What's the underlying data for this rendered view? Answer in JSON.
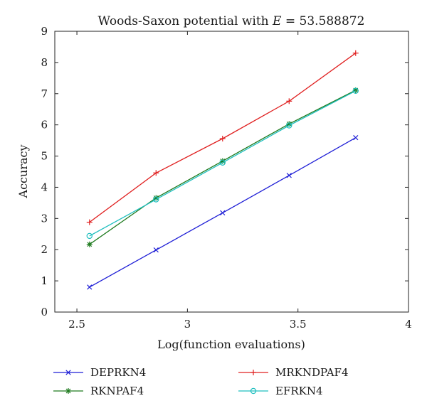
{
  "chart_data": {
    "type": "line",
    "title_prefix": "Woods-Saxon potential with ",
    "title_var": "E",
    "title_suffix": " = 53.588872",
    "xlabel": "Log(function evaluations)",
    "ylabel": "Accuracy",
    "xlim": [
      2.4,
      4
    ],
    "ylim": [
      0,
      9
    ],
    "xticks": [
      2.5,
      3,
      3.5,
      4
    ],
    "xtick_labels": [
      "2.5",
      "3",
      "3.5",
      "4"
    ],
    "yticks": [
      0,
      1,
      2,
      3,
      4,
      5,
      6,
      7,
      8,
      9
    ],
    "ytick_labels": [
      "0",
      "1",
      "2",
      "3",
      "4",
      "5",
      "6",
      "7",
      "8",
      "9"
    ],
    "grid": false,
    "legend_position": "bottom",
    "series": [
      {
        "name": "DEPRKN4",
        "color": "#1f1fd6",
        "marker": "x",
        "x": [
          2.557,
          2.858,
          3.159,
          3.46,
          3.761
        ],
        "y": [
          0.8,
          1.99,
          3.18,
          4.38,
          5.59
        ]
      },
      {
        "name": "MRKNDPAF4",
        "color": "#e02020",
        "marker": "plus",
        "x": [
          2.557,
          2.858,
          3.159,
          3.46,
          3.761
        ],
        "y": [
          2.88,
          4.46,
          5.56,
          6.76,
          8.3
        ]
      },
      {
        "name": "RKNPAF4",
        "color": "#1e7a1e",
        "marker": "star",
        "x": [
          2.557,
          2.858,
          3.159,
          3.46,
          3.761
        ],
        "y": [
          2.17,
          3.66,
          4.84,
          6.03,
          7.11
        ]
      },
      {
        "name": "EFRKN4",
        "color": "#1fbfbf",
        "marker": "circle",
        "x": [
          2.557,
          2.858,
          3.159,
          3.46,
          3.761
        ],
        "y": [
          2.44,
          3.61,
          4.79,
          5.98,
          7.09
        ]
      }
    ]
  }
}
